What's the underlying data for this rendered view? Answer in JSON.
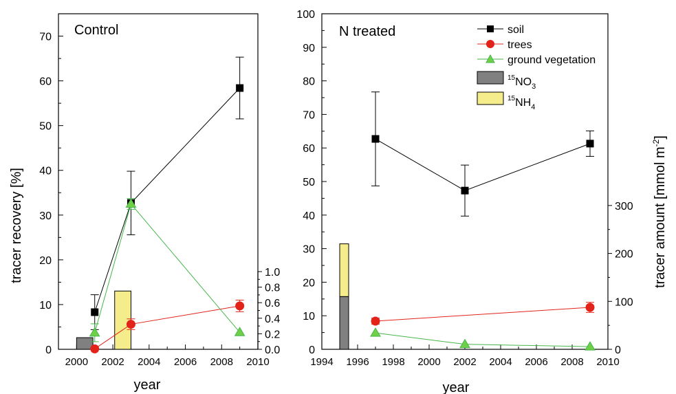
{
  "figure": {
    "ylabel_left": "tracer recovery [%]",
    "ylabel_right": "tracer amount [mmol m",
    "ylabel_right_sup": "-2",
    "ylabel_right_end": "]"
  },
  "legend": {
    "soil": "soil",
    "trees": "trees",
    "ground_vegetation": "ground vegetation",
    "no3_sup": "15",
    "no3_main": "NO",
    "no3_sub": "3",
    "nh4_sup": "15",
    "nh4_main": "NH",
    "nh4_sub": "4"
  },
  "colors": {
    "soil": "#000000",
    "trees": "#e2231a",
    "ground_vegetation": "#45b649",
    "no3_bar": "#808080",
    "nh4_bar": "#f5ec8c",
    "trees_marker_fill": "#e2231a",
    "veg_marker_fill": "#6fcf47"
  },
  "chart_data": [
    {
      "type": "line",
      "title": "Control",
      "xlabel": "year",
      "ylabel": "tracer recovery [%]",
      "xlim": [
        1999,
        2010
      ],
      "ylim": [
        0,
        75
      ],
      "x_ticks": [
        2000,
        2002,
        2004,
        2006,
        2008,
        2010
      ],
      "y_ticks": [
        0,
        10,
        20,
        30,
        40,
        50,
        60,
        70
      ],
      "secondary_y": {
        "ylim": [
          0,
          1.0
        ],
        "ticks": [
          "0.0",
          "0.2",
          "0.4",
          "0.6",
          "0.8",
          "1.0"
        ],
        "tick_values": [
          0,
          0.2,
          0.4,
          0.6,
          0.8,
          1.0
        ]
      },
      "series": [
        {
          "name": "soil",
          "x": [
            2001,
            2003,
            2009
          ],
          "y": [
            8.3,
            32.7,
            58.4
          ],
          "err": [
            3.9,
            7.1,
            6.9
          ]
        },
        {
          "name": "trees",
          "x": [
            2001,
            2003,
            2009
          ],
          "y": [
            0.1,
            5.6,
            9.7
          ],
          "err": [
            0.0,
            1.2,
            1.3
          ]
        },
        {
          "name": "ground vegetation",
          "x": [
            2001,
            2003,
            2009
          ],
          "y": [
            3.7,
            32.5,
            3.8
          ],
          "err": [
            2.0,
            1.2,
            0.0
          ]
        }
      ],
      "bars": [
        {
          "name": "15NO3",
          "x0": 2000,
          "x1": 2000.9,
          "bottom": 0,
          "top": 0.15
        },
        {
          "name": "15NH4",
          "x0": 2002.1,
          "x1": 2003.0,
          "bottom": 0,
          "top": 0.75
        }
      ]
    },
    {
      "type": "line",
      "title": "N treated",
      "xlabel": "year",
      "xlim": [
        1994,
        2010
      ],
      "ylim": [
        0,
        100
      ],
      "x_ticks": [
        1994,
        1996,
        1998,
        2000,
        2002,
        2004,
        2006,
        2008,
        2010
      ],
      "y_ticks": [
        0,
        10,
        20,
        30,
        40,
        50,
        60,
        70,
        80,
        90,
        100
      ],
      "secondary_y": {
        "ylabel": "tracer amount [mmol m-2]",
        "ylim": [
          0,
          700
        ],
        "ticks": [
          "0",
          "100",
          "200",
          "300"
        ],
        "tick_values": [
          0,
          100,
          200,
          300
        ]
      },
      "series": [
        {
          "name": "soil",
          "x": [
            1997,
            2002,
            2009
          ],
          "y": [
            62.7,
            47.3,
            61.3
          ],
          "err": [
            14.0,
            7.6,
            3.8
          ]
        },
        {
          "name": "trees",
          "x": [
            1997,
            2009
          ],
          "y": [
            8.4,
            12.5
          ],
          "err": [
            0.9,
            1.5
          ]
        },
        {
          "name": "ground vegetation",
          "x": [
            1997,
            2002,
            2009
          ],
          "y": [
            4.9,
            1.5,
            0.8
          ],
          "err": [
            0,
            0,
            0
          ]
        }
      ],
      "bars": [
        {
          "name": "15NO3",
          "x0": 1995,
          "x1": 1995.5,
          "bottom": 0,
          "top": 110
        },
        {
          "name": "15NH4",
          "x0": 1995,
          "x1": 1995.5,
          "bottom": 110,
          "top": 220
        }
      ]
    }
  ]
}
